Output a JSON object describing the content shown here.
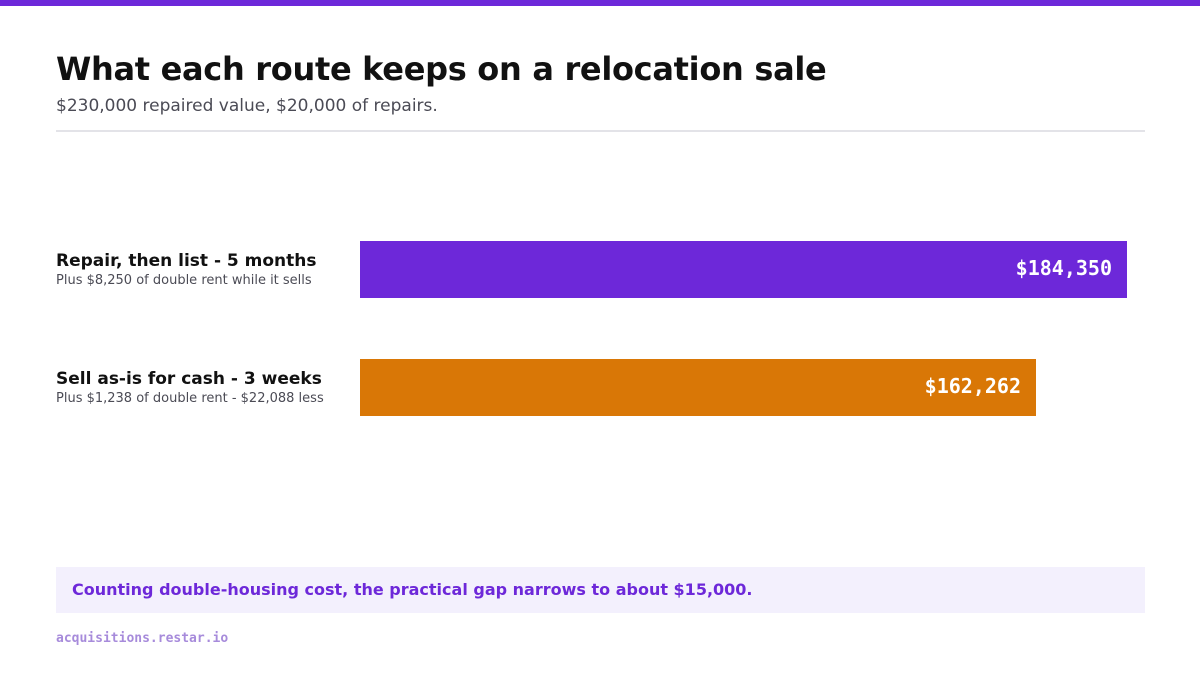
{
  "page": {
    "title": "What each route keeps on a relocation sale",
    "subtitle": "$230,000 repaired value, $20,000 of repairs.",
    "callout": "Counting double-housing cost, the practical gap narrows to about $15,000.",
    "footer": "acquisitions.restar.io"
  },
  "colors": {
    "accent": "#6d28d9",
    "series_repair": "#6d28d9",
    "series_cash": "#d97706"
  },
  "chart_data": {
    "type": "bar",
    "orientation": "horizontal",
    "title": "What each route keeps on a relocation sale",
    "subtitle": "$230,000 repaired value, $20,000 of repairs.",
    "categories": [
      "Repair, then list - 5 months",
      "Sell as-is for cash - 3 weeks"
    ],
    "notes": [
      "Plus $8,250 of double rent while it sells",
      "Plus $1,238 of double rent - $22,088 less"
    ],
    "values": [
      184350,
      162262
    ],
    "value_labels": [
      "$184,350",
      "$162,262"
    ],
    "colors": [
      "#6d28d9",
      "#d97706"
    ],
    "xlim": [
      0,
      190000
    ],
    "grid": false,
    "legend": "none"
  }
}
